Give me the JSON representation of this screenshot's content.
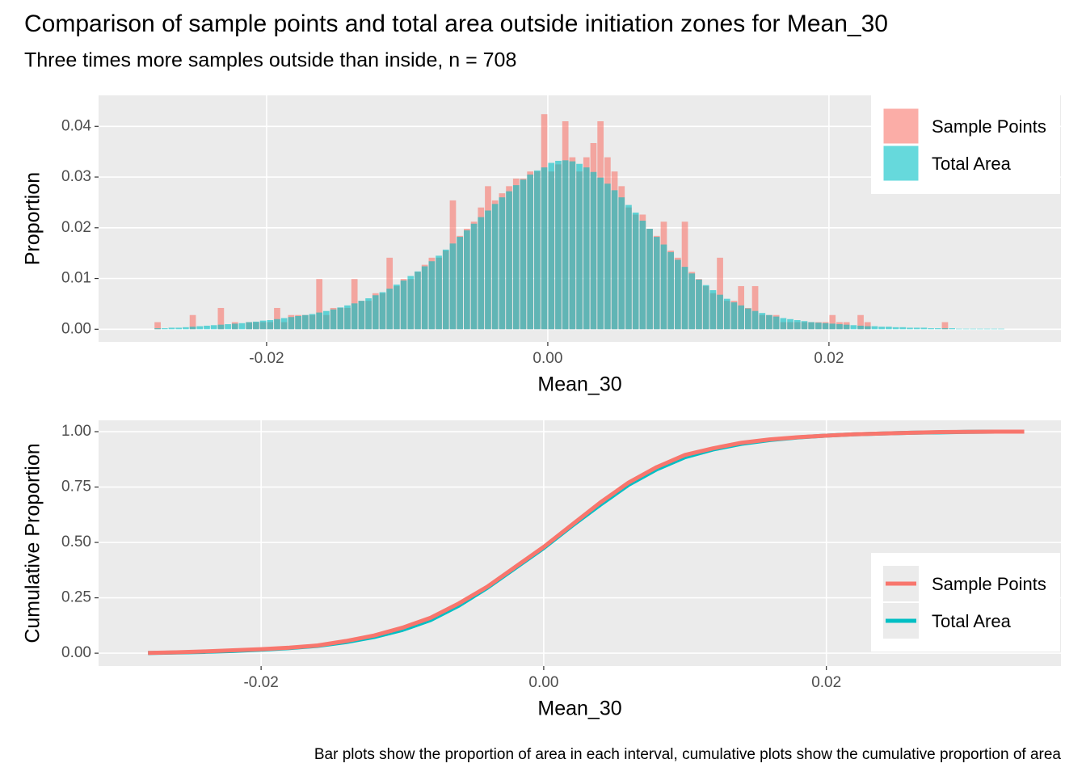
{
  "title": "Comparison of sample points and total area outside initiation zones for Mean_30",
  "subtitle": "Three times more samples outside than inside, n = 708",
  "caption": "Bar plots show the proportion of area in each interval, cumulative plots show the cumulative proportion of area",
  "chart_data": [
    {
      "type": "histogram",
      "xlabel": "Mean_30",
      "ylabel": "Proportion",
      "bins": [
        -0.028,
        -0.0275,
        -0.027,
        -0.0265,
        -0.026,
        -0.0255,
        -0.025,
        -0.0245,
        -0.024,
        -0.0235,
        -0.023,
        -0.0225,
        -0.022,
        -0.0215,
        -0.021,
        -0.0205,
        -0.02,
        -0.0195,
        -0.019,
        -0.0185,
        -0.018,
        -0.0175,
        -0.017,
        -0.0165,
        -0.016,
        -0.0155,
        -0.015,
        -0.0145,
        -0.014,
        -0.0135,
        -0.013,
        -0.0125,
        -0.012,
        -0.0115,
        -0.011,
        -0.0105,
        -0.01,
        -0.0095,
        -0.009,
        -0.0085,
        -0.008,
        -0.0075,
        -0.007,
        -0.0065,
        -0.006,
        -0.0055,
        -0.005,
        -0.0045,
        -0.004,
        -0.0035,
        -0.003,
        -0.0025,
        -0.002,
        -0.0015,
        -0.001,
        -0.0005,
        0,
        0.0005,
        0.001,
        0.0015,
        0.002,
        0.0025,
        0.003,
        0.0035,
        0.004,
        0.0045,
        0.005,
        0.0055,
        0.006,
        0.0065,
        0.007,
        0.0075,
        0.008,
        0.0085,
        0.009,
        0.0095,
        0.01,
        0.0105,
        0.011,
        0.0115,
        0.012,
        0.0125,
        0.013,
        0.0135,
        0.014,
        0.0145,
        0.015,
        0.0155,
        0.016,
        0.0165,
        0.017,
        0.0175,
        0.018,
        0.0185,
        0.019,
        0.0195,
        0.02,
        0.0205,
        0.021,
        0.0215,
        0.022,
        0.0225,
        0.023,
        0.0235,
        0.024,
        0.0245,
        0.025,
        0.0255,
        0.026,
        0.0265,
        0.027,
        0.0275,
        0.028,
        0.0285,
        0.029,
        0.0295,
        0.03,
        0.0305,
        0.031,
        0.0315,
        0.032,
        0.0325
      ],
      "series": [
        {
          "name": "Sample Points",
          "color": "#F8766D",
          "opacity": 0.6,
          "values": [
            0.0014,
            0,
            0,
            0,
            0,
            0.0028,
            0,
            0,
            0,
            0.0042,
            0,
            0.0014,
            0,
            0.0014,
            0.0014,
            0.0014,
            0.0014,
            0.0042,
            0.0014,
            0.0028,
            0.0028,
            0.0028,
            0.0028,
            0.0099,
            0.0028,
            0.0042,
            0.0042,
            0.0042,
            0.0099,
            0.0056,
            0.0056,
            0.0071,
            0.0071,
            0.0141,
            0.0085,
            0.0099,
            0.0099,
            0.0113,
            0.0127,
            0.0141,
            0.0141,
            0.0155,
            0.0254,
            0.0184,
            0.0198,
            0.0212,
            0.024,
            0.0282,
            0.0254,
            0.0268,
            0.0282,
            0.0297,
            0.0297,
            0.0311,
            0.0311,
            0.0424,
            0.0311,
            0.0325,
            0.041,
            0.0339,
            0.0311,
            0.0339,
            0.0367,
            0.041,
            0.0339,
            0.0311,
            0.0282,
            0.024,
            0.0226,
            0.0226,
            0.0198,
            0.0184,
            0.0212,
            0.0155,
            0.0141,
            0.0212,
            0.0113,
            0.0099,
            0.0085,
            0.0071,
            0.0141,
            0.0056,
            0.0056,
            0.0085,
            0.0042,
            0.0085,
            0.0028,
            0.0028,
            0.0028,
            0.0014,
            0.0014,
            0.0014,
            0.0014,
            0.0014,
            0.0014,
            0.0014,
            0.0028,
            0.0014,
            0.0014,
            0,
            0.0028,
            0.0014,
            0,
            0,
            0,
            0,
            0,
            0,
            0,
            0,
            0,
            0,
            0.0014,
            0,
            0,
            0,
            0,
            0,
            0,
            0,
            0
          ]
        },
        {
          "name": "Total Area",
          "color": "#00BFC4",
          "opacity": 0.6,
          "values": [
            0.0002,
            0.0002,
            0.0003,
            0.0003,
            0.0004,
            0.0005,
            0.0006,
            0.0007,
            0.0008,
            0.0009,
            0.001,
            0.0011,
            0.0012,
            0.0014,
            0.0015,
            0.0017,
            0.0018,
            0.002,
            0.0022,
            0.0024,
            0.0026,
            0.0028,
            0.003,
            0.0033,
            0.0036,
            0.0039,
            0.0043,
            0.0047,
            0.0051,
            0.0056,
            0.0061,
            0.0067,
            0.0073,
            0.008,
            0.0088,
            0.0096,
            0.0105,
            0.0114,
            0.0124,
            0.0134,
            0.0145,
            0.0157,
            0.0169,
            0.0182,
            0.0195,
            0.0208,
            0.0221,
            0.0234,
            0.0247,
            0.026,
            0.0272,
            0.0284,
            0.0295,
            0.0305,
            0.0313,
            0.0319,
            0.0328,
            0.0332,
            0.0333,
            0.0331,
            0.0326,
            0.0319,
            0.031,
            0.0299,
            0.0287,
            0.0274,
            0.026,
            0.0245,
            0.023,
            0.0214,
            0.0198,
            0.0182,
            0.0167,
            0.0152,
            0.0137,
            0.0123,
            0.011,
            0.0098,
            0.0087,
            0.0077,
            0.0068,
            0.006,
            0.0053,
            0.0047,
            0.0041,
            0.0036,
            0.0032,
            0.0028,
            0.0025,
            0.0022,
            0.002,
            0.0018,
            0.0016,
            0.0014,
            0.0013,
            0.0012,
            0.0011,
            0.001,
            0.0009,
            0.0008,
            0.0007,
            0.0006,
            0.0006,
            0.0005,
            0.0005,
            0.0004,
            0.0004,
            0.0003,
            0.0003,
            0.0003,
            0.0002,
            0.0002,
            0.0002,
            0.0002,
            0.0001,
            0.0001,
            0.0001,
            0.0001,
            0.0001,
            0.0001,
            0.0001
          ]
        }
      ],
      "xlim": [
        -0.03195,
        0.0365
      ],
      "ylim": [
        -0.0025,
        0.0461
      ],
      "xticks": [
        -0.02,
        {
          "value": 0,
          "label": "0.00"
        },
        0.02
      ],
      "yticks": [
        {
          "value": 0,
          "label": "0.00"
        },
        0.01,
        0.02,
        0.03,
        0.04
      ],
      "grid": true,
      "legend": "top-right"
    },
    {
      "type": "line",
      "xlabel": "Mean_30",
      "ylabel": "Cumulative Proportion",
      "x": [
        -0.028,
        -0.026,
        -0.024,
        -0.022,
        -0.02,
        -0.018,
        -0.016,
        -0.014,
        -0.012,
        -0.01,
        -0.008,
        -0.006,
        -0.004,
        -0.002,
        0,
        0.002,
        0.004,
        0.006,
        0.008,
        0.01,
        0.012,
        0.014,
        0.016,
        0.018,
        0.02,
        0.022,
        0.024,
        0.026,
        0.028,
        0.03,
        0.032,
        0.034
      ],
      "series": [
        {
          "name": "Sample Points",
          "color": "#F8766D",
          "values": [
            0.0014,
            0.004,
            0.008,
            0.013,
            0.018,
            0.025,
            0.035,
            0.055,
            0.08,
            0.115,
            0.16,
            0.225,
            0.3,
            0.39,
            0.48,
            0.58,
            0.68,
            0.77,
            0.84,
            0.895,
            0.925,
            0.95,
            0.965,
            0.975,
            0.982,
            0.988,
            0.992,
            0.995,
            0.998,
            0.999,
            1,
            1
          ]
        },
        {
          "name": "Total Area",
          "color": "#00BFC4",
          "values": [
            0.001,
            0.003,
            0.006,
            0.01,
            0.016,
            0.023,
            0.033,
            0.05,
            0.073,
            0.105,
            0.15,
            0.215,
            0.295,
            0.385,
            0.475,
            0.575,
            0.67,
            0.76,
            0.83,
            0.885,
            0.92,
            0.945,
            0.962,
            0.974,
            0.982,
            0.988,
            0.992,
            0.995,
            0.997,
            0.999,
            1,
            1
          ]
        }
      ],
      "xlim": [
        -0.0315,
        0.0366
      ],
      "ylim": [
        -0.058,
        1.0511
      ],
      "xticks": [
        -0.02,
        {
          "value": 0,
          "label": "0.00"
        },
        0.02
      ],
      "yticks": [
        {
          "value": 0,
          "label": "0.00"
        },
        0.25,
        {
          "value": 0.5,
          "label": "0.50"
        },
        0.75,
        {
          "value": 1,
          "label": "1.00"
        }
      ],
      "grid": true,
      "legend": "bottom-right"
    }
  ]
}
